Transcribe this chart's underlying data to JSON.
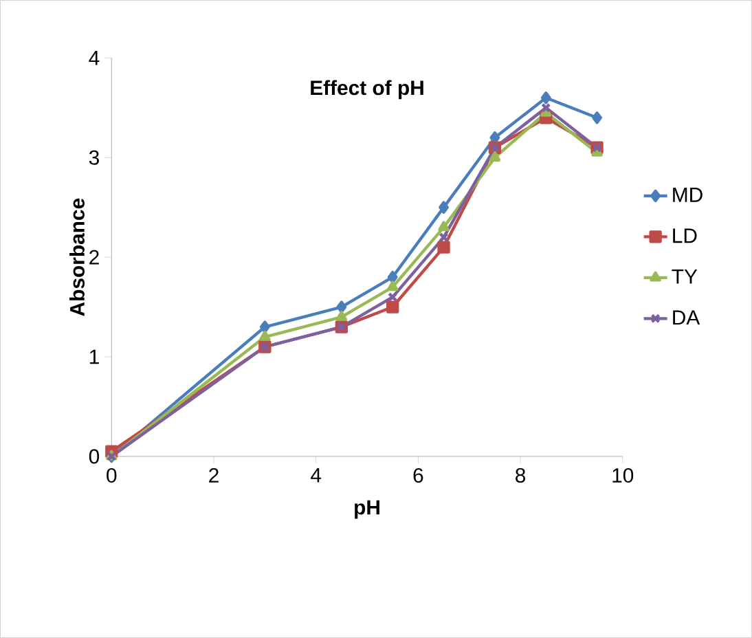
{
  "chart_data": {
    "type": "line",
    "title": "Effect of pH",
    "xlabel": "pH",
    "ylabel": "Absorbance",
    "x": [
      0,
      3,
      4.5,
      5.5,
      6.5,
      7.5,
      8.5,
      9.5
    ],
    "series": [
      {
        "name": "MD",
        "color": "#4a7ebb",
        "marker": "diamond",
        "values": [
          0,
          1.3,
          1.5,
          1.8,
          2.5,
          3.2,
          3.6,
          3.4
        ]
      },
      {
        "name": "LD",
        "color": "#be4b48",
        "marker": "square",
        "values": [
          0.05,
          1.1,
          1.3,
          1.5,
          2.1,
          3.1,
          3.4,
          3.1
        ]
      },
      {
        "name": "TY",
        "color": "#98b954",
        "marker": "triangle",
        "values": [
          0,
          1.2,
          1.4,
          1.7,
          2.3,
          3.0,
          3.45,
          3.05
        ]
      },
      {
        "name": "DA",
        "color": "#7d60a0",
        "marker": "cross",
        "values": [
          0,
          1.1,
          1.3,
          1.6,
          2.2,
          3.1,
          3.5,
          3.1
        ]
      }
    ],
    "xlim": [
      0,
      10
    ],
    "ylim": [
      0,
      4
    ],
    "xticks": [
      0,
      2,
      4,
      6,
      8,
      10
    ],
    "yticks": [
      0,
      1,
      2,
      3,
      4
    ],
    "grid": false,
    "legend": "right",
    "line_style": "solid"
  }
}
